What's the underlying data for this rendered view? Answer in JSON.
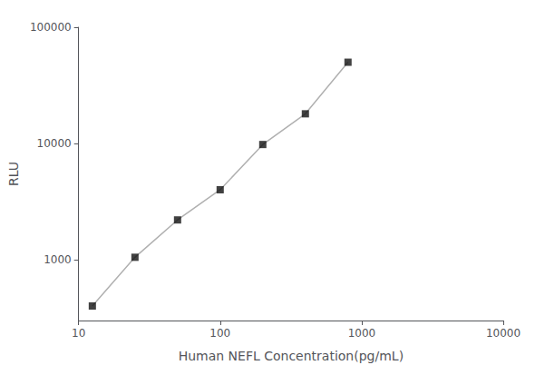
{
  "chart_data": {
    "type": "line",
    "x": [
      12.5,
      25,
      50,
      100,
      200,
      400,
      800
    ],
    "series": [
      {
        "type": "line",
        "color": "#b0b0b0",
        "line_style": "solid",
        "values": [
          400,
          1050,
          2200,
          4000,
          9800,
          18000,
          50000
        ]
      },
      {
        "type": "scatter",
        "color": "#111111",
        "marker": "square",
        "values": [
          400,
          1050,
          2200,
          4000,
          9800,
          18000,
          50000
        ]
      }
    ],
    "xlabel": "Human NEFL Concentration(pg/mL)",
    "ylabel": "RLU",
    "xlim": [
      10,
      10000
    ],
    "ylim": [
      300,
      100000
    ],
    "xticks": [
      10,
      100,
      1000,
      10000
    ],
    "yticks": [
      1000,
      10000,
      100000
    ],
    "log": true,
    "grid": false
  }
}
